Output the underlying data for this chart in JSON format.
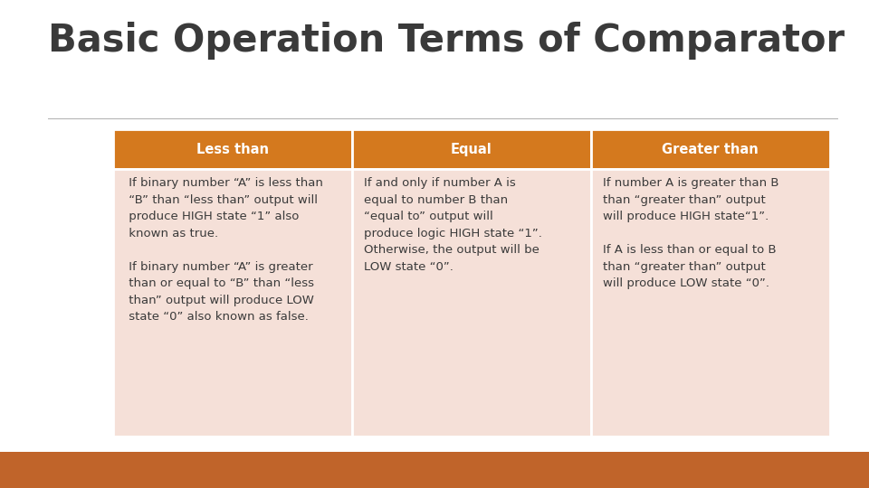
{
  "title": "Basic Operation Terms of Comparator",
  "title_color": "#3a3a3a",
  "title_fontsize": 30,
  "background_color": "#ffffff",
  "footer_color": "#c0642a",
  "divider_color": "#b0b0b0",
  "header_bg_color": "#d4791e",
  "header_text_color": "#ffffff",
  "cell_bg_color": "#f5e0d8",
  "headers": [
    "Less than",
    "Equal",
    "Greater than"
  ],
  "col1_lines": [
    " If binary number “A” is less than",
    " “B” than “less than” output will",
    " produce HIGH state “1” also",
    " known as true.",
    "",
    " If binary number “A” is greater",
    " than or equal to “B” than “less",
    " than” output will produce LOW",
    " state “0” also known as false."
  ],
  "col2_lines": [
    "If and only if number A is",
    "equal to number B than",
    "“equal to” output will",
    "produce logic HIGH state “1”.",
    "Otherwise, the output will be",
    "LOW state “0”."
  ],
  "col3_lines": [
    "If number A is greater than B",
    "than “greater than” output",
    "will produce HIGH state“1”.",
    "",
    "If A is less than or equal to B",
    "than “greater than” output",
    "will produce LOW state “0”."
  ],
  "text_color": "#3a3a3a",
  "text_fontsize": 9.5
}
